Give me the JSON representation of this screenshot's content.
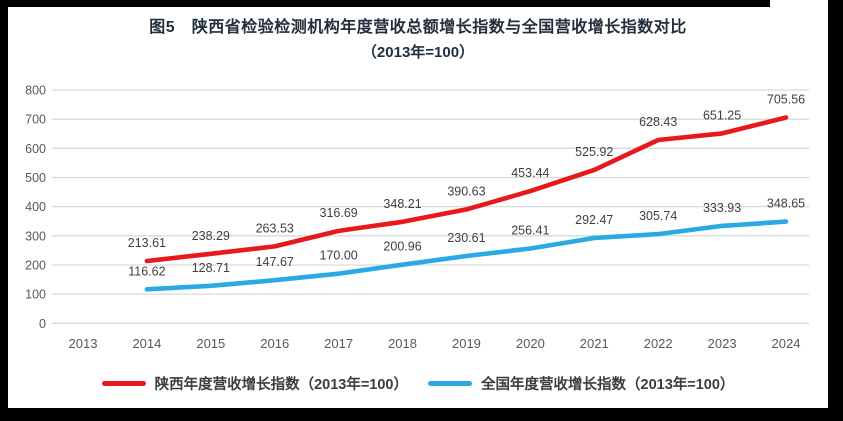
{
  "figure": {
    "title_line1": "图5　陕西省检验检测机构年度营收总额增长指数与全国营收增长指数对比",
    "title_line2": "（2013年=100）"
  },
  "chart_data": {
    "type": "line",
    "title": "图5 陕西省检验检测机构年度营收总额增长指数与全国营收增长指数对比（2013年=100）",
    "xlabel": "",
    "ylabel": "",
    "categories": [
      "2013",
      "2014",
      "2015",
      "2016",
      "2017",
      "2018",
      "2019",
      "2020",
      "2021",
      "2022",
      "2023",
      "2024"
    ],
    "ylim": [
      0,
      800
    ],
    "yticks": [
      0,
      100,
      200,
      300,
      400,
      500,
      600,
      700,
      800
    ],
    "grid": "horizontal",
    "grid_color": "#d9d9d9",
    "axis_tick_color": "#595959",
    "data_label_color": "#404040",
    "legend_position": "bottom",
    "series": [
      {
        "id": "shaanxi",
        "name": "陕西年度营收增长指数（2013年=100）",
        "color": "#e8191d",
        "values": [
          null,
          213.61,
          238.29,
          263.53,
          316.69,
          348.21,
          390.63,
          453.44,
          525.92,
          628.43,
          651.25,
          705.56
        ],
        "labels": [
          null,
          "213.61",
          "238.29",
          "263.53",
          "316.69",
          "348.21",
          "390.63",
          "453.44",
          "525.92",
          "628.43",
          "651.25",
          "705.56"
        ]
      },
      {
        "id": "national",
        "name": "全国年度营收增长指数（2013年=100）",
        "color": "#29abe2",
        "values": [
          null,
          116.62,
          128.71,
          147.67,
          170.0,
          200.96,
          230.61,
          256.41,
          292.47,
          305.74,
          333.93,
          348.65
        ],
        "labels": [
          null,
          "116.62",
          "128.71",
          "147.67",
          "170.00",
          "200.96",
          "230.61",
          "256.41",
          "292.47",
          "305.74",
          "333.93",
          "348.65"
        ]
      }
    ]
  }
}
